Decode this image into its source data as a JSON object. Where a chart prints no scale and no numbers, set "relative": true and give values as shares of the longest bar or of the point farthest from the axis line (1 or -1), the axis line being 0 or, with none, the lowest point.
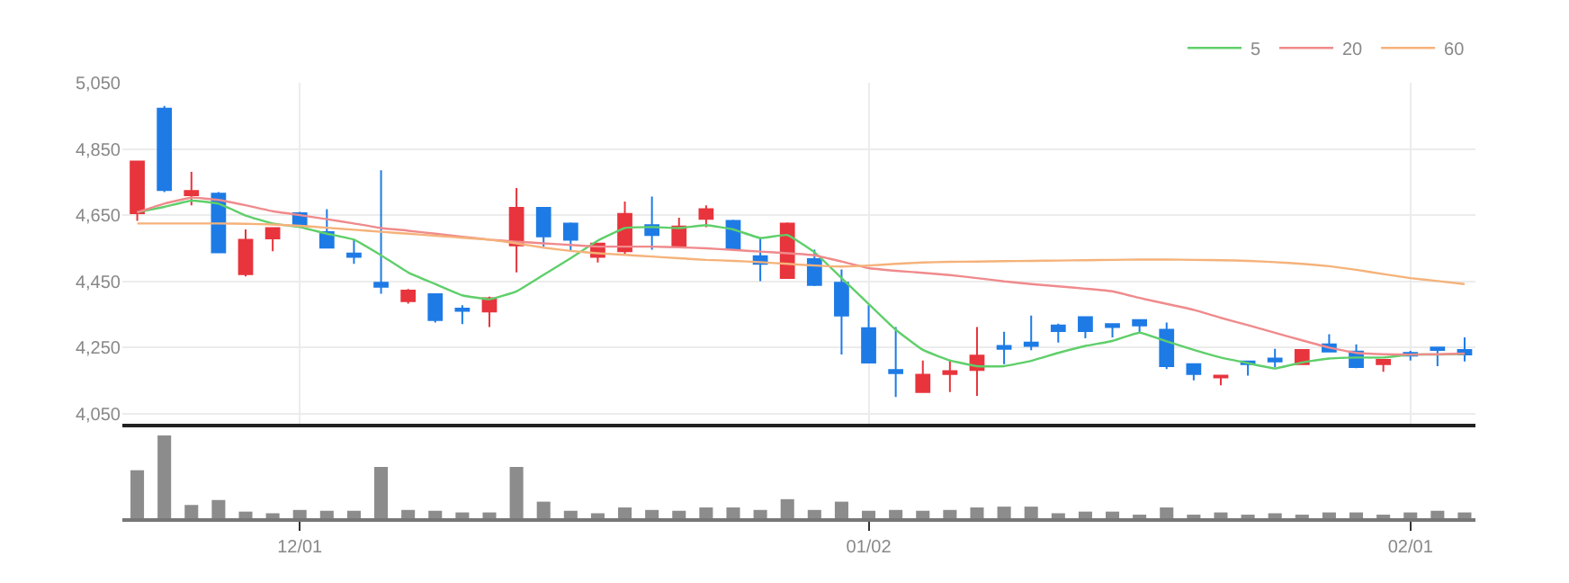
{
  "chart_data": [
    {
      "type": "candlestick",
      "tick_labels": "y",
      "grid": true,
      "legend": "top right",
      "categories": [
        null,
        null,
        null,
        null,
        null,
        null,
        null,
        null,
        null,
        null,
        null,
        null,
        null,
        null,
        null,
        null,
        null,
        null,
        null,
        null,
        null,
        null,
        null,
        null,
        null,
        null,
        null,
        null,
        null,
        null,
        null,
        null,
        null,
        null,
        null,
        null,
        null,
        null,
        null,
        null,
        null,
        null,
        null,
        null,
        null,
        null,
        null,
        null,
        null,
        null
      ],
      "ylim": [
        4020,
        5050
      ],
      "yticks": [
        {
          "value": 4050,
          "label": "4,050"
        },
        {
          "value": 4250,
          "label": "4,250"
        },
        {
          "value": 4450,
          "label": "4,450"
        },
        {
          "value": 4650,
          "label": "4,650"
        },
        {
          "value": 4850,
          "label": "4,850"
        },
        {
          "value": 5050,
          "label": "5,050"
        }
      ],
      "ohlc": [
        [
          4656,
          4815,
          4633,
          4812
        ],
        [
          4972,
          4980,
          4720,
          4726
        ],
        [
          4710,
          4781,
          4680,
          4723
        ],
        [
          4715,
          4720,
          4535,
          4538
        ],
        [
          4472,
          4607,
          4465,
          4576
        ],
        [
          4580,
          4613,
          4541,
          4611
        ],
        [
          4656,
          4660,
          4615,
          4620
        ],
        [
          4599,
          4668,
          4550,
          4552
        ],
        [
          4534,
          4576,
          4503,
          4524
        ],
        [
          4446,
          4786,
          4413,
          4434
        ],
        [
          4390,
          4427,
          4383,
          4422
        ],
        [
          4411,
          4414,
          4326,
          4333
        ],
        [
          4368,
          4378,
          4321,
          4361
        ],
        [
          4359,
          4404,
          4312,
          4399
        ],
        [
          4559,
          4732,
          4477,
          4672
        ],
        [
          4672,
          4675,
          4555,
          4586
        ],
        [
          4625,
          4628,
          4541,
          4576
        ],
        [
          4524,
          4567,
          4507,
          4564
        ],
        [
          4541,
          4691,
          4529,
          4654
        ],
        [
          4620,
          4706,
          4546,
          4590
        ],
        [
          4555,
          4642,
          4551,
          4616
        ],
        [
          4639,
          4680,
          4614,
          4668
        ],
        [
          4633,
          4636,
          4546,
          4550
        ],
        [
          4526,
          4581,
          4451,
          4503
        ],
        [
          4460,
          4628,
          4458,
          4625
        ],
        [
          4517,
          4546,
          4436,
          4439
        ],
        [
          4446,
          4486,
          4229,
          4347
        ],
        [
          4309,
          4378,
          4205,
          4205
        ],
        [
          4182,
          4312,
          4101,
          4173
        ],
        [
          4116,
          4211,
          4116,
          4168
        ],
        [
          4170,
          4211,
          4116,
          4179
        ],
        [
          4182,
          4312,
          4104,
          4226
        ],
        [
          4255,
          4298,
          4200,
          4246
        ],
        [
          4265,
          4347,
          4242,
          4255
        ],
        [
          4317,
          4322,
          4265,
          4300
        ],
        [
          4342,
          4345,
          4278,
          4300
        ],
        [
          4321,
          4321,
          4281,
          4312
        ],
        [
          4333,
          4336,
          4295,
          4317
        ],
        [
          4304,
          4326,
          4185,
          4194
        ],
        [
          4200,
          4203,
          4151,
          4170
        ],
        [
          4160,
          4165,
          4136,
          4165
        ],
        [
          4208,
          4210,
          4165,
          4200
        ],
        [
          4217,
          4246,
          4191,
          4208
        ],
        [
          4200,
          4243,
          4200,
          4243
        ],
        [
          4260,
          4290,
          4236,
          4238
        ],
        [
          4238,
          4260,
          4188,
          4191
        ],
        [
          4200,
          4213,
          4177,
          4213
        ],
        [
          4234,
          4240,
          4211,
          4226
        ],
        [
          4250,
          4253,
          4194,
          4243
        ],
        [
          4243,
          4281,
          4208,
          4229
        ]
      ],
      "colors": [
        "#e8343c",
        "#1e7be6",
        "#e8343c",
        "#1e7be6",
        "#e8343c",
        "#e8343c",
        "#1e7be6",
        "#1e7be6",
        "#1e7be6",
        "#1e7be6",
        "#e8343c",
        "#1e7be6",
        "#1e7be6",
        "#e8343c",
        "#e8343c",
        "#1e7be6",
        "#1e7be6",
        "#e8343c",
        "#e8343c",
        "#1e7be6",
        "#e8343c",
        "#e8343c",
        "#1e7be6",
        "#1e7be6",
        "#e8343c",
        "#1e7be6",
        "#1e7be6",
        "#1e7be6",
        "#1e7be6",
        "#e8343c",
        "#e8343c",
        "#e8343c",
        "#1e7be6",
        "#1e7be6",
        "#1e7be6",
        "#1e7be6",
        "#1e7be6",
        "#1e7be6",
        "#1e7be6",
        "#1e7be6",
        "#e8343c",
        "#1e7be6",
        "#1e7be6",
        "#e8343c",
        "#1e7be6",
        "#1e7be6",
        "#e8343c",
        "#1e7be6",
        "#1e7be6",
        "#1e7be6"
      ],
      "series": [
        {
          "type": "line",
          "name": "5",
          "color": "#5fcf6a",
          "values": [
            4659,
            4675,
            4694,
            4685,
            4649,
            4625,
            4614,
            4594,
            4576,
            4529,
            4477,
            4442,
            4408,
            4396,
            4420,
            4470,
            4520,
            4573,
            4611,
            4614,
            4611,
            4620,
            4607,
            4581,
            4590,
            4538,
            4460,
            4382,
            4304,
            4243,
            4211,
            4194,
            4194,
            4210,
            4234,
            4255,
            4270,
            4295,
            4269,
            4243,
            4220,
            4203,
            4187,
            4205,
            4217,
            4220,
            4220,
            4229,
            4229,
            4231
          ]
        },
        {
          "type": "line",
          "name": "20",
          "color": "#f08a8c",
          "values": [
            4659,
            4685,
            4703,
            4696,
            4680,
            4662,
            4650,
            4638,
            4625,
            4611,
            4603,
            4594,
            4585,
            4576,
            4570,
            4565,
            4560,
            4555,
            4555,
            4555,
            4553,
            4550,
            4545,
            4540,
            4535,
            4529,
            4510,
            4490,
            4482,
            4476,
            4469,
            4460,
            4450,
            4442,
            4435,
            4428,
            4420,
            4400,
            4382,
            4364,
            4340,
            4318,
            4295,
            4272,
            4250,
            4234,
            4230,
            4229,
            4230,
            4232
          ]
        },
        {
          "type": "line",
          "name": "60",
          "color": "#f5b27a",
          "values": [
            4625,
            4625,
            4625,
            4625,
            4624,
            4622,
            4618,
            4612,
            4606,
            4600,
            4594,
            4588,
            4582,
            4576,
            4565,
            4552,
            4542,
            4535,
            4530,
            4525,
            4520,
            4515,
            4512,
            4508,
            4503,
            4498,
            4495,
            4498,
            4503,
            4507,
            4509,
            4510,
            4511,
            4512,
            4513,
            4514,
            4515,
            4516,
            4516,
            4515,
            4514,
            4512,
            4508,
            4503,
            4496,
            4485,
            4472,
            4460,
            4451,
            4442
          ]
        }
      ]
    },
    {
      "type": "bar",
      "relative": true,
      "tick_labels": "x",
      "color": "#8c8c8c",
      "categories": [
        null,
        null,
        null,
        null,
        null,
        null,
        "12/01",
        null,
        null,
        null,
        null,
        null,
        null,
        null,
        null,
        null,
        null,
        null,
        null,
        null,
        null,
        null,
        null,
        null,
        null,
        null,
        null,
        "01/02",
        null,
        null,
        null,
        null,
        null,
        null,
        null,
        null,
        null,
        null,
        null,
        null,
        null,
        null,
        null,
        null,
        null,
        null,
        null,
        "02/01",
        null,
        null
      ],
      "values": [
        0.58,
        1,
        0.16,
        0.22,
        0.08,
        0.06,
        0.1,
        0.09,
        0.09,
        0.62,
        0.1,
        0.09,
        0.07,
        0.07,
        0.62,
        0.2,
        0.09,
        0.06,
        0.13,
        0.1,
        0.09,
        0.13,
        0.13,
        0.1,
        0.23,
        0.1,
        0.2,
        0.09,
        0.1,
        0.09,
        0.1,
        0.13,
        0.14,
        0.14,
        0.06,
        0.08,
        0.08,
        0.04,
        0.13,
        0.04,
        0.07,
        0.03,
        0.06,
        0.04,
        0.07,
        0.07,
        0.04,
        0.07,
        0.09,
        0.07
      ]
    }
  ]
}
